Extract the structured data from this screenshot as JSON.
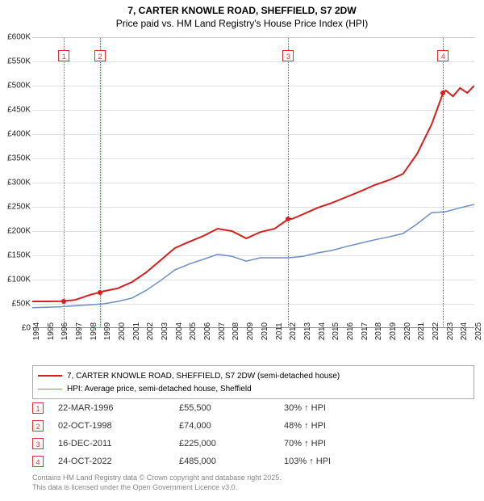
{
  "title_line1": "7, CARTER KNOWLE ROAD, SHEFFIELD, S7 2DW",
  "title_line2": "Price paid vs. HM Land Registry's House Price Index (HPI)",
  "chart": {
    "type": "line",
    "background_color": "#ffffff",
    "grid_color": "#e0e0e0",
    "axis_color": "#888888",
    "label_fontsize": 10,
    "x_min_year": 1994,
    "x_max_year": 2025,
    "x_ticks": [
      1994,
      1995,
      1996,
      1997,
      1998,
      1999,
      2000,
      2001,
      2002,
      2003,
      2004,
      2005,
      2006,
      2007,
      2008,
      2009,
      2010,
      2011,
      2012,
      2013,
      2014,
      2015,
      2016,
      2017,
      2018,
      2019,
      2020,
      2021,
      2022,
      2023,
      2024,
      2025
    ],
    "y_min": 0,
    "y_max": 600000,
    "y_tick_step": 50000,
    "y_tick_labels": [
      "£0",
      "£50K",
      "£100K",
      "£150K",
      "£200K",
      "£250K",
      "£300K",
      "£350K",
      "£400K",
      "£450K",
      "£500K",
      "£550K",
      "£600K"
    ],
    "series": [
      {
        "name": "7, CARTER KNOWLE ROAD, SHEFFIELD, S7 2DW (semi-detached house)",
        "color": "#d81e1e",
        "line_width": 2,
        "data": [
          [
            1994,
            55000
          ],
          [
            1995,
            55000
          ],
          [
            1996,
            55500
          ],
          [
            1997,
            58000
          ],
          [
            1998,
            68000
          ],
          [
            1998.75,
            74000
          ],
          [
            1999,
            76000
          ],
          [
            2000,
            82000
          ],
          [
            2001,
            95000
          ],
          [
            2002,
            115000
          ],
          [
            2003,
            140000
          ],
          [
            2004,
            165000
          ],
          [
            2005,
            178000
          ],
          [
            2006,
            190000
          ],
          [
            2007,
            205000
          ],
          [
            2008,
            200000
          ],
          [
            2009,
            185000
          ],
          [
            2010,
            198000
          ],
          [
            2011,
            205000
          ],
          [
            2011.96,
            225000
          ],
          [
            2012.2,
            225000
          ],
          [
            2013,
            235000
          ],
          [
            2014,
            248000
          ],
          [
            2015,
            258000
          ],
          [
            2016,
            270000
          ],
          [
            2017,
            282000
          ],
          [
            2018,
            295000
          ],
          [
            2019,
            305000
          ],
          [
            2020,
            318000
          ],
          [
            2021,
            360000
          ],
          [
            2022,
            420000
          ],
          [
            2022.81,
            485000
          ],
          [
            2023,
            490000
          ],
          [
            2023.5,
            478000
          ],
          [
            2024,
            495000
          ],
          [
            2024.5,
            485000
          ],
          [
            2025,
            500000
          ]
        ]
      },
      {
        "name": "HPI: Average price, semi-detached house, Sheffield",
        "color": "#6a8fc6",
        "line_width": 1.5,
        "data": [
          [
            1994,
            42000
          ],
          [
            1995,
            43000
          ],
          [
            1996,
            44000
          ],
          [
            1997,
            46000
          ],
          [
            1998,
            48000
          ],
          [
            1999,
            50000
          ],
          [
            2000,
            55000
          ],
          [
            2001,
            62000
          ],
          [
            2002,
            78000
          ],
          [
            2003,
            98000
          ],
          [
            2004,
            120000
          ],
          [
            2005,
            132000
          ],
          [
            2006,
            142000
          ],
          [
            2007,
            152000
          ],
          [
            2008,
            148000
          ],
          [
            2009,
            138000
          ],
          [
            2010,
            145000
          ],
          [
            2011,
            145000
          ],
          [
            2012,
            145000
          ],
          [
            2013,
            148000
          ],
          [
            2014,
            155000
          ],
          [
            2015,
            160000
          ],
          [
            2016,
            168000
          ],
          [
            2017,
            175000
          ],
          [
            2018,
            182000
          ],
          [
            2019,
            188000
          ],
          [
            2020,
            195000
          ],
          [
            2021,
            215000
          ],
          [
            2022,
            238000
          ],
          [
            2023,
            240000
          ],
          [
            2024,
            248000
          ],
          [
            2025,
            255000
          ]
        ]
      }
    ],
    "markers": [
      {
        "num": "1",
        "year": 1996.22,
        "label_y": 62
      },
      {
        "num": "2",
        "year": 1998.75,
        "label_y": 62
      },
      {
        "num": "3",
        "year": 2011.96,
        "label_y": 62
      },
      {
        "num": "4",
        "year": 2022.81,
        "label_y": 62
      }
    ],
    "sale_points": [
      {
        "year": 1996.22,
        "value": 55500,
        "color": "#d81e1e"
      },
      {
        "year": 1998.75,
        "value": 74000,
        "color": "#d81e1e"
      },
      {
        "year": 2011.96,
        "value": 225000,
        "color": "#d81e1e"
      },
      {
        "year": 2022.81,
        "value": 485000,
        "color": "#d81e1e"
      }
    ]
  },
  "legend": {
    "items": [
      {
        "color": "#d81e1e",
        "width": 2,
        "label": "7, CARTER KNOWLE ROAD, SHEFFIELD, S7 2DW (semi-detached house)"
      },
      {
        "color": "#6a8fc6",
        "width": 1.5,
        "label": "HPI: Average price, semi-detached house, Sheffield"
      }
    ]
  },
  "sales": [
    {
      "num": "1",
      "date": "22-MAR-1996",
      "price": "£55,500",
      "hpi": "30% ↑ HPI"
    },
    {
      "num": "2",
      "date": "02-OCT-1998",
      "price": "£74,000",
      "hpi": "48% ↑ HPI"
    },
    {
      "num": "3",
      "date": "16-DEC-2011",
      "price": "£225,000",
      "hpi": "70% ↑ HPI"
    },
    {
      "num": "4",
      "date": "24-OCT-2022",
      "price": "£485,000",
      "hpi": "103% ↑ HPI"
    }
  ],
  "footer_line1": "Contains HM Land Registry data © Crown copyright and database right 2025.",
  "footer_line2": "This data is licensed under the Open Government Licence v3.0."
}
